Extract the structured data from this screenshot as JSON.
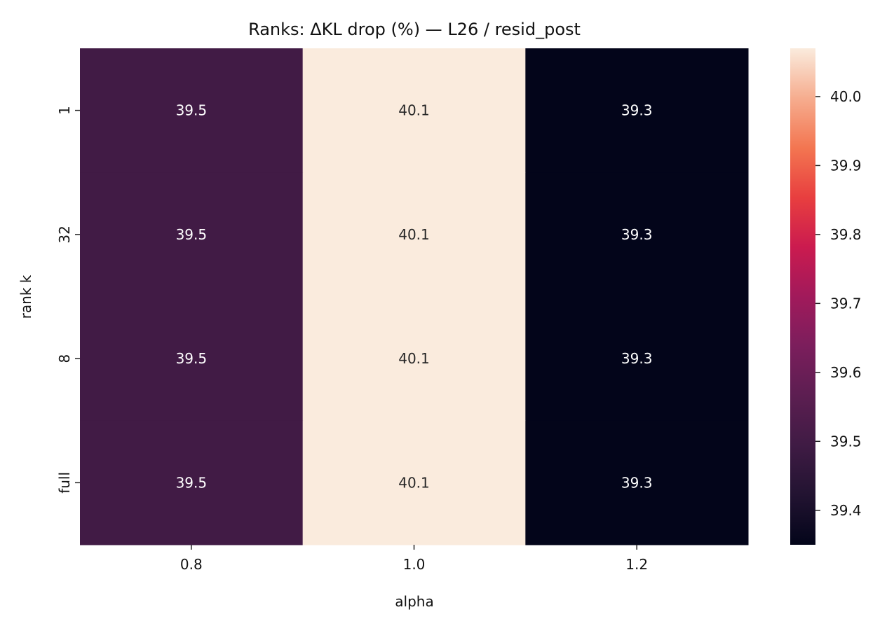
{
  "chart_data": {
    "type": "heatmap",
    "title": "Ranks: ΔKL drop (%) — L26 / resid_post",
    "xlabel": "alpha",
    "ylabel": "rank k",
    "x_categories": [
      "0.8",
      "1.0",
      "1.2"
    ],
    "y_categories": [
      "1",
      "32",
      "8",
      "full"
    ],
    "values": [
      [
        39.5,
        40.1,
        39.3
      ],
      [
        39.5,
        40.1,
        39.3
      ],
      [
        39.5,
        40.1,
        39.3
      ],
      [
        39.5,
        40.1,
        39.3
      ]
    ],
    "cell_labels": [
      [
        "39.5",
        "40.1",
        "39.3"
      ],
      [
        "39.5",
        "40.1",
        "39.3"
      ],
      [
        "39.5",
        "40.1",
        "39.3"
      ],
      [
        "39.5",
        "40.1",
        "39.3"
      ]
    ],
    "color_range": [
      39.35,
      40.07
    ],
    "colormap": "rocket",
    "colorbar": {
      "ticks": [
        39.4,
        39.5,
        39.6,
        39.7,
        39.8,
        39.9,
        40.0
      ],
      "tick_labels": [
        "39.4",
        "39.5",
        "39.6",
        "39.7",
        "39.8",
        "39.9",
        "40.0"
      ]
    },
    "colors": {
      "low": "#03051a",
      "mid": "#a11a5b",
      "high": "#faebdd"
    },
    "grid": false,
    "legend": "colorbar-right"
  }
}
